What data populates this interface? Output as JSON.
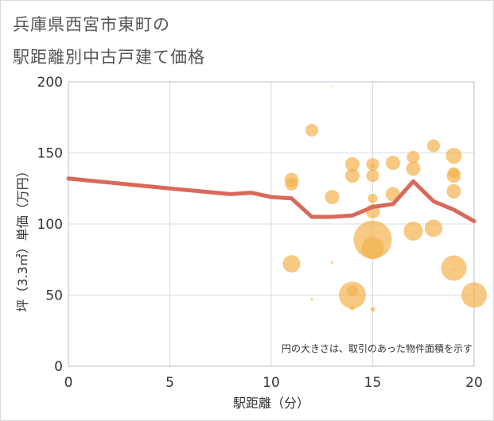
{
  "title_line1": "兵庫県西宮市東町の",
  "title_line2": "駅距離別中古戸建て価格",
  "chart_data": {
    "type": "scatter",
    "title": "兵庫県西宮市東町の駅距離別中古戸建て価格",
    "xlabel": "駅距離（分）",
    "ylabel": "坪（3.3㎡）単価（万円）",
    "xlim": [
      0,
      20
    ],
    "ylim": [
      0,
      200
    ],
    "xticks": [
      0,
      5,
      10,
      15,
      20
    ],
    "yticks": [
      0,
      50,
      100,
      150,
      200
    ],
    "x_tick_labels": [
      "0",
      "5",
      "10",
      "15",
      "20"
    ],
    "y_tick_labels": [
      "0",
      "50",
      "100",
      "150",
      "200"
    ],
    "note": "円の大きさは、取引のあった物件面積を示す",
    "colors": {
      "bubble": "#f4b24d",
      "line": "#d9695a",
      "grid": "#d6dde8"
    },
    "trend_line": {
      "x": [
        0,
        5,
        8,
        9,
        10,
        11,
        12,
        13,
        14,
        15,
        16,
        17,
        18,
        19,
        20
      ],
      "y": [
        132,
        125,
        121,
        122,
        119,
        118,
        105,
        105,
        106,
        112,
        114,
        130,
        116,
        110,
        102
      ]
    },
    "points": [
      {
        "x": 11,
        "y": 131,
        "r": 9
      },
      {
        "x": 11,
        "y": 128,
        "r": 8
      },
      {
        "x": 11,
        "y": 72,
        "r": 11
      },
      {
        "x": 12,
        "y": 166,
        "r": 8
      },
      {
        "x": 12,
        "y": 47,
        "r": 1.5
      },
      {
        "x": 13,
        "y": 119,
        "r": 9
      },
      {
        "x": 13,
        "y": 73,
        "r": 1.5
      },
      {
        "x": 13,
        "y": 197,
        "r": 1
      },
      {
        "x": 14,
        "y": 142,
        "r": 9
      },
      {
        "x": 14,
        "y": 134,
        "r": 9
      },
      {
        "x": 14,
        "y": 50,
        "r": 17
      },
      {
        "x": 14,
        "y": 53,
        "r": 7
      },
      {
        "x": 14,
        "y": 41,
        "r": 3
      },
      {
        "x": 15,
        "y": 142,
        "r": 8
      },
      {
        "x": 15,
        "y": 141,
        "r": 3
      },
      {
        "x": 15,
        "y": 134,
        "r": 8
      },
      {
        "x": 15,
        "y": 118,
        "r": 6
      },
      {
        "x": 15,
        "y": 109,
        "r": 9
      },
      {
        "x": 15,
        "y": 89,
        "r": 24
      },
      {
        "x": 15,
        "y": 83,
        "r": 14
      },
      {
        "x": 15,
        "y": 40,
        "r": 3
      },
      {
        "x": 16,
        "y": 143,
        "r": 9
      },
      {
        "x": 16,
        "y": 121,
        "r": 9
      },
      {
        "x": 17,
        "y": 147,
        "r": 8
      },
      {
        "x": 17,
        "y": 139,
        "r": 9
      },
      {
        "x": 17,
        "y": 95,
        "r": 12
      },
      {
        "x": 18,
        "y": 155,
        "r": 8
      },
      {
        "x": 18,
        "y": 97,
        "r": 11
      },
      {
        "x": 19,
        "y": 148,
        "r": 10
      },
      {
        "x": 19,
        "y": 136,
        "r": 7
      },
      {
        "x": 19,
        "y": 134,
        "r": 9
      },
      {
        "x": 19,
        "y": 123,
        "r": 9
      },
      {
        "x": 19,
        "y": 69,
        "r": 16
      },
      {
        "x": 19,
        "y": 68,
        "r": 1.5
      },
      {
        "x": 20,
        "y": 50,
        "r": 16
      }
    ]
  }
}
